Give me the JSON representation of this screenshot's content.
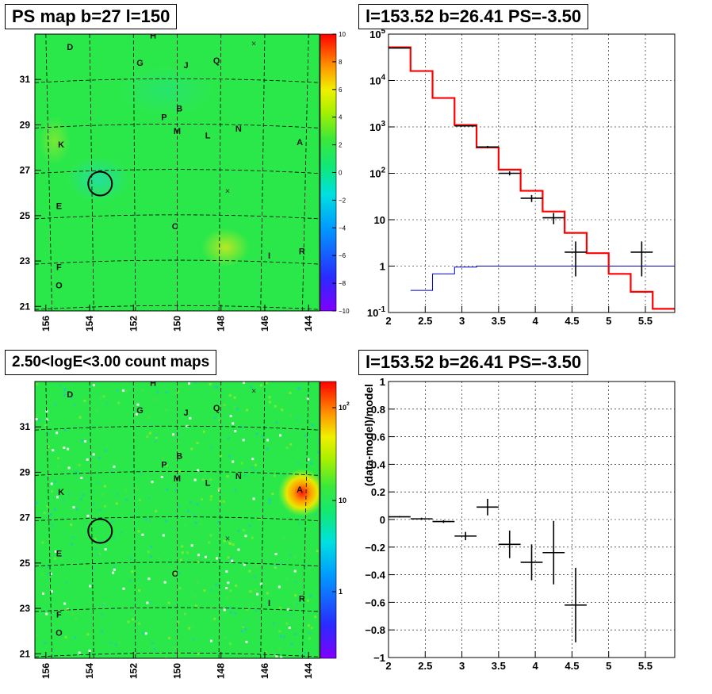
{
  "panels": {
    "top_left_title": "PS map b=27 l=150",
    "top_right_title": "l=153.52 b=26.41 PS=-3.50",
    "bottom_left_title": "2.50<logE<3.00 count maps",
    "bottom_right_title": "l=153.52 b=26.41 PS=-3.50"
  },
  "colors": {
    "map_green": "#2be84a",
    "spectrum_model": "#ff0000",
    "background_model": "#0000cc",
    "data": "#000000",
    "count_hotspot": "#ff2020"
  },
  "chart_data": [
    {
      "type": "heatmap",
      "title": "PS map b=27 l=150",
      "x_ticks": [
        "156",
        "154",
        "152",
        "150",
        "148",
        "146",
        "144"
      ],
      "y_ticks": [
        "21",
        "23",
        "25",
        "27",
        "29",
        "31"
      ],
      "xlim": [
        156.5,
        143.5
      ],
      "ylim": [
        20.8,
        33.0
      ],
      "colorbar": {
        "min": -10,
        "max": 10,
        "ticks": [
          "10",
          "8",
          "6",
          "4",
          "2",
          "0",
          "−2",
          "−4",
          "−6",
          "−8",
          "−10"
        ]
      },
      "labels": [
        {
          "t": "D",
          "l": 154.9,
          "b": 32.3
        },
        {
          "t": "H",
          "l": 151.1,
          "b": 32.8
        },
        {
          "t": "G",
          "l": 151.7,
          "b": 31.6
        },
        {
          "t": "J",
          "l": 149.6,
          "b": 31.5
        },
        {
          "t": "Q",
          "l": 148.2,
          "b": 31.7
        },
        {
          "t": "B",
          "l": 149.9,
          "b": 29.6
        },
        {
          "t": "P",
          "l": 150.6,
          "b": 29.2
        },
        {
          "t": "M",
          "l": 150.0,
          "b": 28.6
        },
        {
          "t": "L",
          "l": 148.6,
          "b": 28.4
        },
        {
          "t": "N",
          "l": 147.2,
          "b": 28.7
        },
        {
          "t": "A",
          "l": 144.4,
          "b": 28.1
        },
        {
          "t": "K",
          "l": 155.3,
          "b": 28.0
        },
        {
          "t": "E",
          "l": 155.4,
          "b": 25.3
        },
        {
          "t": "C",
          "l": 150.1,
          "b": 24.4
        },
        {
          "t": "I",
          "l": 145.8,
          "b": 23.1
        },
        {
          "t": "R",
          "l": 144.3,
          "b": 23.3
        },
        {
          "t": "F",
          "l": 155.4,
          "b": 22.6
        },
        {
          "t": "O",
          "l": 155.4,
          "b": 21.8
        }
      ],
      "crosses": [
        {
          "l": 146.5,
          "b": 32.6
        },
        {
          "l": 147.7,
          "b": 26.1
        }
      ],
      "circle": {
        "l": 153.52,
        "b": 26.41,
        "r_deg": 0.5
      }
    },
    {
      "type": "line",
      "title": "l=153.52 b=26.41 PS=-3.50",
      "xlim": [
        2.0,
        5.9
      ],
      "ylim": [
        0.1,
        100000
      ],
      "yscale": "log",
      "x_ticks": [
        "2",
        "2.5",
        "3",
        "3.5",
        "4",
        "4.5",
        "5",
        "5.5"
      ],
      "y_ticks": [
        "10^-1",
        "1",
        "10",
        "10^2",
        "10^3",
        "10^4",
        "10^5"
      ],
      "grid": true,
      "series": [
        {
          "style": "step",
          "edges": [
            2.0,
            2.3,
            2.6,
            2.9,
            3.2,
            3.5,
            3.8,
            4.1,
            4.4,
            4.7,
            5.0,
            5.3,
            5.6,
            5.9
          ],
          "values": [
            52000,
            16000,
            4200,
            1100,
            360,
            120,
            42,
            15,
            5.2,
            1.9,
            0.68,
            0.28,
            0.12
          ]
        },
        {
          "style": "step",
          "edges": [
            2.3,
            2.6,
            2.9,
            3.2,
            5.9
          ],
          "values": [
            0.3,
            0.68,
            0.95,
            1.0
          ]
        },
        {
          "style": "errorbar",
          "points": [
            {
              "x": 2.15,
              "y": 50000,
              "xerr": 0.15,
              "ylo": 49500,
              "yhi": 50500
            },
            {
              "x": 3.05,
              "y": 1050,
              "xerr": 0.15,
              "ylo": 1020,
              "yhi": 1080
            },
            {
              "x": 3.35,
              "y": 370,
              "xerr": 0.15,
              "ylo": 350,
              "yhi": 390
            },
            {
              "x": 3.65,
              "y": 100,
              "xerr": 0.15,
              "ylo": 90,
              "yhi": 110
            },
            {
              "x": 3.95,
              "y": 29,
              "xerr": 0.15,
              "ylo": 24,
              "yhi": 34
            },
            {
              "x": 4.25,
              "y": 11,
              "xerr": 0.15,
              "ylo": 8,
              "yhi": 14
            },
            {
              "x": 4.55,
              "y": 2.0,
              "xerr": 0.15,
              "ylo": 0.6,
              "yhi": 3.4
            },
            {
              "x": 5.45,
              "y": 2.0,
              "xerr": 0.15,
              "ylo": 0.6,
              "yhi": 3.4
            }
          ]
        }
      ]
    },
    {
      "type": "heatmap",
      "title": "2.50<logE<3.00 count maps",
      "x_ticks": [
        "156",
        "154",
        "152",
        "150",
        "148",
        "146",
        "144"
      ],
      "y_ticks": [
        "21",
        "23",
        "25",
        "27",
        "29",
        "31"
      ],
      "xlim": [
        156.5,
        143.5
      ],
      "ylim": [
        20.8,
        33.0
      ],
      "colorbar": {
        "scale": "log",
        "ticks": [
          "10^2",
          "10",
          "1"
        ]
      },
      "hotspot": {
        "l": 144.3,
        "b": 28.1
      },
      "labels_same_as": "PS map b=27 l=150",
      "circle": {
        "l": 153.52,
        "b": 26.41,
        "r_deg": 0.5
      }
    },
    {
      "type": "scatter",
      "title": "l=153.52 b=26.41 PS=-3.50",
      "ylabel": "(data-model)/model",
      "xlim": [
        2.0,
        5.9
      ],
      "ylim": [
        -1,
        1
      ],
      "x_ticks": [
        "2",
        "2.5",
        "3",
        "3.5",
        "4",
        "4.5",
        "5",
        "5.5"
      ],
      "y_ticks": [
        "1",
        "0.8",
        "0.6",
        "0.4",
        "0.2",
        "0",
        "−0.2",
        "−0.4",
        "−0.6",
        "−0.8",
        "−1"
      ],
      "grid": true,
      "points": [
        {
          "x": 2.15,
          "y": 0.02,
          "xerr": 0.15,
          "yerr": 0.005
        },
        {
          "x": 2.45,
          "y": 0.005,
          "xerr": 0.15,
          "yerr": 0.008
        },
        {
          "x": 2.75,
          "y": -0.015,
          "xerr": 0.15,
          "yerr": 0.01
        },
        {
          "x": 3.05,
          "y": -0.12,
          "xerr": 0.15,
          "yerr": 0.03
        },
        {
          "x": 3.35,
          "y": 0.09,
          "xerr": 0.15,
          "yerr": 0.06
        },
        {
          "x": 3.65,
          "y": -0.18,
          "xerr": 0.15,
          "yerr": 0.1
        },
        {
          "x": 3.95,
          "y": -0.31,
          "xerr": 0.15,
          "yerr": 0.13
        },
        {
          "x": 4.25,
          "y": -0.24,
          "xerr": 0.15,
          "yerr": 0.23
        },
        {
          "x": 4.55,
          "y": -0.62,
          "xerr": 0.15,
          "yerr": 0.27
        }
      ]
    }
  ]
}
